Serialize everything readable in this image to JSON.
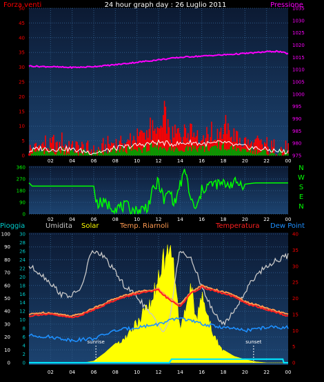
{
  "header": {
    "title": "24 hour graph day : 26 Luglio 2011",
    "left_label": "Forza venti",
    "right_label": "Pressione"
  },
  "colors": {
    "plot_bg_top": "#0c1a33",
    "plot_bg_bottom": "#1c4370",
    "grid": "#2e5a86",
    "wind_red": "#ff0000",
    "wind_green": "#00a000",
    "wind_white": "#ffffff",
    "pressure": "#ff00ff",
    "direction": "#00ff00",
    "humidity": "#c8c8c8",
    "solar": "#ffff00",
    "temp_riarnoli": "#ff9a50",
    "temperature": "#ff2020",
    "dew_point": "#1e90ff",
    "rain": "#00e5ff",
    "axis_left": "#ff0000",
    "axis_right": "#ff00ff",
    "axis_cyan": "#00cccc"
  },
  "chart_data": [
    {
      "type": "line",
      "name": "wind_pressure",
      "x_ticks": [
        "02",
        "04",
        "06",
        "08",
        "10",
        "12",
        "14",
        "16",
        "18",
        "20",
        "22",
        "00"
      ],
      "y_left": {
        "label": "Forza venti",
        "ticks": [
          "0",
          "5",
          "10",
          "15",
          "20",
          "25",
          "30",
          "35",
          "40",
          "45",
          "50"
        ],
        "ylim": [
          0,
          50
        ]
      },
      "y_right": {
        "label": "Pressione",
        "ticks": [
          "975",
          "980",
          "985",
          "990",
          "995",
          "1000",
          "1005",
          "1010",
          "1015",
          "1020",
          "1025",
          "1030",
          "1035"
        ],
        "ylim": [
          975,
          1035
        ]
      },
      "series": [
        {
          "key": "pressure",
          "axis": "right",
          "x": [
            0,
            1,
            2,
            3,
            4,
            5,
            6,
            7,
            8,
            9,
            10,
            11,
            12,
            13,
            14,
            15,
            16,
            17,
            18,
            19,
            20,
            21,
            22,
            23,
            24
          ],
          "values": [
            1011.5,
            1011.3,
            1011.2,
            1011.0,
            1010.9,
            1011.0,
            1011.3,
            1011.6,
            1012.0,
            1012.5,
            1013.0,
            1013.5,
            1014.0,
            1014.5,
            1015.0,
            1015.3,
            1015.5,
            1015.8,
            1016.0,
            1016.3,
            1016.6,
            1016.9,
            1017.3,
            1017.5,
            1016.5
          ]
        },
        {
          "key": "wind_gust",
          "axis": "left",
          "x": [
            0,
            1,
            2,
            3,
            4,
            5,
            6,
            7,
            8,
            9,
            10,
            11,
            12,
            12.5,
            13,
            14,
            15,
            16,
            17,
            18,
            19,
            20,
            21,
            22,
            23,
            24
          ],
          "values": [
            3,
            5,
            4,
            6,
            4,
            3,
            2,
            3,
            5,
            7,
            9,
            10,
            11,
            16,
            10,
            9,
            12,
            8,
            9,
            12,
            8,
            6,
            5,
            4,
            3,
            2
          ]
        },
        {
          "key": "wind_speed",
          "axis": "left",
          "x": [
            0,
            1,
            2,
            3,
            4,
            5,
            6,
            7,
            8,
            9,
            10,
            11,
            12,
            13,
            14,
            15,
            16,
            17,
            18,
            19,
            20,
            21,
            22,
            23,
            24
          ],
          "values": [
            1,
            2,
            1.5,
            2,
            1.5,
            1,
            1,
            1,
            2,
            2.5,
            3,
            3.5,
            4,
            3,
            3,
            4,
            3,
            3.5,
            4,
            3,
            2.5,
            2,
            1.5,
            1,
            1
          ]
        },
        {
          "key": "wind_avg",
          "axis": "left",
          "x": [
            0,
            1,
            2,
            3,
            4,
            5,
            6,
            7,
            8,
            9,
            10,
            11,
            12,
            13,
            14,
            15,
            16,
            17,
            18,
            19,
            20,
            21,
            22,
            23,
            24
          ],
          "values": [
            1.5,
            2.5,
            2,
            2.5,
            2,
            1.5,
            1,
            1.5,
            2.5,
            3,
            3.5,
            4,
            4.5,
            4,
            4,
            4.5,
            4,
            4,
            4.5,
            3.5,
            3,
            2.5,
            2,
            1.5,
            1.2
          ]
        }
      ]
    },
    {
      "type": "line",
      "name": "wind_direction",
      "x_ticks": [
        "02",
        "04",
        "06",
        "08",
        "10",
        "12",
        "14",
        "16",
        "18",
        "20",
        "22",
        "00"
      ],
      "y_left": {
        "ticks": [
          "0",
          "90",
          "180",
          "270",
          "360"
        ],
        "ylim": [
          0,
          360
        ]
      },
      "y_right": {
        "ticks": [
          "N",
          "W",
          "S",
          "E",
          "N"
        ]
      },
      "series": [
        {
          "key": "direction",
          "x": [
            0,
            0.3,
            1,
            2,
            3,
            4,
            5,
            6,
            6.2,
            7,
            8,
            9,
            10,
            11,
            11.5,
            12,
            12.5,
            13,
            13.5,
            14,
            14.5,
            15,
            15.5,
            16,
            16.5,
            17,
            18,
            19,
            20,
            21,
            22,
            23,
            24
          ],
          "values": [
            240,
            215,
            215,
            215,
            215,
            215,
            215,
            215,
            90,
            80,
            50,
            60,
            20,
            60,
            180,
            250,
            100,
            180,
            80,
            230,
            330,
            100,
            30,
            180,
            220,
            230,
            230,
            240,
            230,
            240,
            240,
            240,
            240
          ]
        }
      ]
    },
    {
      "type": "line",
      "name": "temperature_solar_rain",
      "legend": [
        "Pioggia",
        "Umidita",
        "Solar",
        "Temp. Riarnoli",
        "Temperatura",
        "Dew Point"
      ],
      "x_ticks": [
        "02",
        "04",
        "06",
        "08",
        "10",
        "12",
        "14",
        "16",
        "18",
        "20",
        "22",
        "00"
      ],
      "y_left_outer": {
        "ticks": [
          "0",
          "10",
          "20",
          "30",
          "40",
          "50",
          "60",
          "70",
          "80",
          "90",
          "100"
        ],
        "ylim": [
          0,
          100
        ]
      },
      "y_left_inner": {
        "ticks": [
          "0",
          "2",
          "4",
          "6",
          "8",
          "10",
          "12",
          "14",
          "16",
          "18",
          "20",
          "22",
          "24",
          "26",
          "28",
          "30"
        ],
        "ylim": [
          0,
          30
        ]
      },
      "y_right": {
        "ticks": [
          "0",
          "5",
          "10",
          "15",
          "20",
          "25",
          "30",
          "35",
          "40"
        ],
        "ylim": [
          0,
          40
        ]
      },
      "annotations": [
        {
          "text": "sunrise",
          "x": 6.2
        },
        {
          "text": "sunset",
          "x": 20.8
        }
      ],
      "series": [
        {
          "key": "humidity",
          "axis": "outer",
          "x": [
            0,
            1,
            2,
            3,
            4,
            5,
            5.5,
            6,
            7,
            8,
            9,
            10,
            11,
            12,
            12.5,
            13,
            13.5,
            14,
            15,
            16,
            17,
            18,
            19,
            20,
            21,
            22,
            23,
            24
          ],
          "values": [
            75,
            70,
            62,
            53,
            52,
            60,
            80,
            87,
            82,
            70,
            58,
            52,
            40,
            30,
            25,
            32,
            62,
            88,
            80,
            60,
            40,
            30,
            40,
            55,
            68,
            75,
            80,
            83
          ]
        },
        {
          "key": "solar",
          "axis": "right",
          "x": [
            0,
            5,
            6,
            7,
            8,
            9,
            10,
            11,
            11.5,
            12,
            12.5,
            13,
            13.3,
            13.6,
            14,
            14.5,
            15,
            15.5,
            16,
            16.5,
            17,
            18,
            19,
            20,
            21,
            22,
            24
          ],
          "values": [
            0,
            0,
            0.5,
            3,
            6,
            9,
            14,
            20,
            24,
            30,
            36,
            38,
            36,
            28,
            10,
            20,
            27,
            15,
            24,
            18,
            10,
            4,
            2,
            1,
            0.3,
            0,
            0
          ]
        },
        {
          "key": "temp_riarnoli",
          "axis": "right",
          "x": [
            0,
            1,
            2,
            3,
            4,
            5,
            6,
            7,
            8,
            9,
            10,
            11,
            12,
            12.5,
            13,
            14,
            15,
            16,
            17,
            18,
            19,
            20,
            21,
            22,
            23,
            24
          ],
          "values": [
            15,
            15.5,
            15.5,
            15,
            14.5,
            15.5,
            17,
            18.5,
            20,
            21,
            22,
            22.5,
            23,
            21.5,
            20,
            18,
            22,
            24,
            23,
            22,
            21,
            19,
            18,
            17,
            16,
            15
          ]
        },
        {
          "key": "temperature",
          "axis": "right",
          "x": [
            0,
            1,
            2,
            3,
            4,
            5,
            6,
            7,
            8,
            9,
            10,
            11,
            12,
            12.5,
            13,
            14,
            15,
            16,
            17,
            18,
            19,
            20,
            21,
            22,
            23,
            24
          ],
          "values": [
            14.5,
            15,
            15,
            14.5,
            14,
            15,
            16.5,
            18,
            19.5,
            20.5,
            21.5,
            22,
            22.5,
            21,
            19.5,
            17.5,
            21.5,
            23.5,
            22.5,
            21.5,
            20.5,
            18.5,
            17.5,
            16.5,
            15.5,
            14.5
          ]
        },
        {
          "key": "dew_point",
          "axis": "right",
          "x": [
            0,
            2,
            4,
            6,
            8,
            10,
            12,
            14,
            15,
            16,
            18,
            20,
            22,
            24
          ],
          "values": [
            8.5,
            8,
            7,
            7.5,
            10,
            11,
            12,
            14,
            13,
            12,
            11,
            10,
            11,
            11
          ]
        },
        {
          "key": "rain",
          "axis": "outer",
          "x": [
            0,
            13,
            13.2,
            23.5,
            23.6,
            24
          ],
          "values": [
            0,
            0,
            2.8,
            2.8,
            0,
            0
          ]
        }
      ]
    }
  ]
}
